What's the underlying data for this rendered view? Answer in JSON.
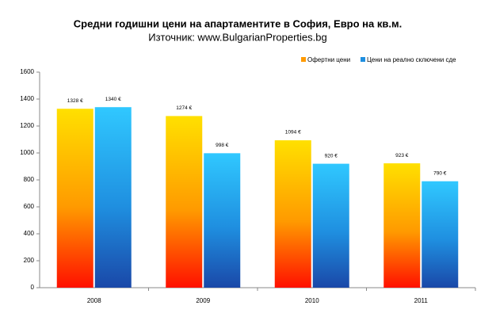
{
  "chart_data": {
    "type": "bar",
    "title": "Средни годишни цени на апартаментите в София, Евро на кв.м.",
    "subtitle": "Източник: www.BulgarianProperties.bg",
    "categories": [
      "2008",
      "2009",
      "2010",
      "2011"
    ],
    "series": [
      {
        "name": "Офертни цени",
        "color": "#ff9a00",
        "values": [
          1328,
          1274,
          1094,
          923
        ],
        "value_labels": [
          "1328 €",
          "1274 €",
          "1094 €",
          "923 €"
        ]
      },
      {
        "name": "Цени на реално сключени сде",
        "color": "#1f8fe0",
        "values": [
          1340,
          998,
          920,
          790
        ],
        "value_labels": [
          "1340 €",
          "998 €",
          "920 €",
          "790 €"
        ]
      }
    ],
    "ylim": [
      0,
      1600
    ],
    "yticks": [
      0,
      200,
      400,
      600,
      800,
      1000,
      1200,
      1400,
      1600
    ],
    "legend": "top-right"
  }
}
